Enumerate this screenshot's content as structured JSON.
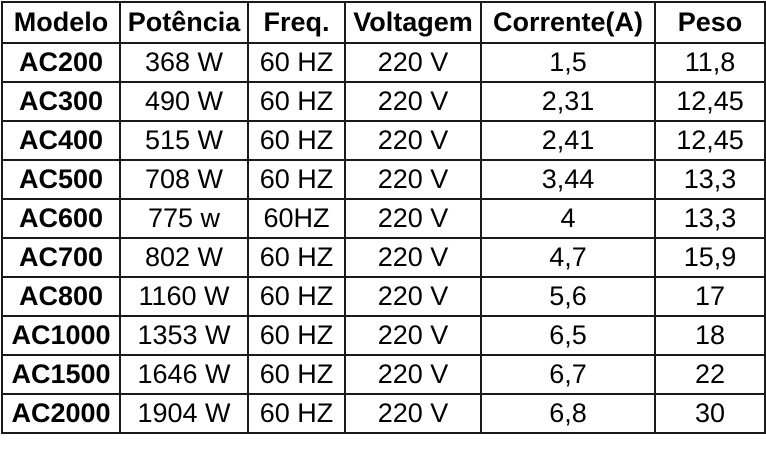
{
  "table": {
    "headers": [
      "Modelo",
      "Potência",
      "Freq.",
      "Voltagem",
      "Corrente(A)",
      "Peso"
    ],
    "rows": [
      [
        "AC200",
        "368 W",
        "60 HZ",
        "220 V",
        "1,5",
        "11,8"
      ],
      [
        "AC300",
        "490 W",
        "60 HZ",
        "220 V",
        "2,31",
        "12,45"
      ],
      [
        "AC400",
        "515 W",
        "60 HZ",
        "220 V",
        "2,41",
        "12,45"
      ],
      [
        "AC500",
        "708 W",
        "60 HZ",
        "220 V",
        "3,44",
        "13,3"
      ],
      [
        "AC600",
        "775 w",
        "60HZ",
        "220 V",
        "4",
        "13,3"
      ],
      [
        "AC700",
        "802 W",
        "60 HZ",
        "220 V",
        "4,7",
        "15,9"
      ],
      [
        "AC800",
        "1160 W",
        "60 HZ",
        "220 V",
        "5,6",
        "17"
      ],
      [
        "AC1000",
        "1353 W",
        "60 HZ",
        "220 V",
        "6,5",
        "18"
      ],
      [
        "AC1500",
        "1646 W",
        "60 HZ",
        "220 V",
        "6,7",
        "22"
      ],
      [
        "AC2000",
        "1904 W",
        "60 HZ",
        "220 V",
        "6,8",
        "30"
      ]
    ]
  }
}
